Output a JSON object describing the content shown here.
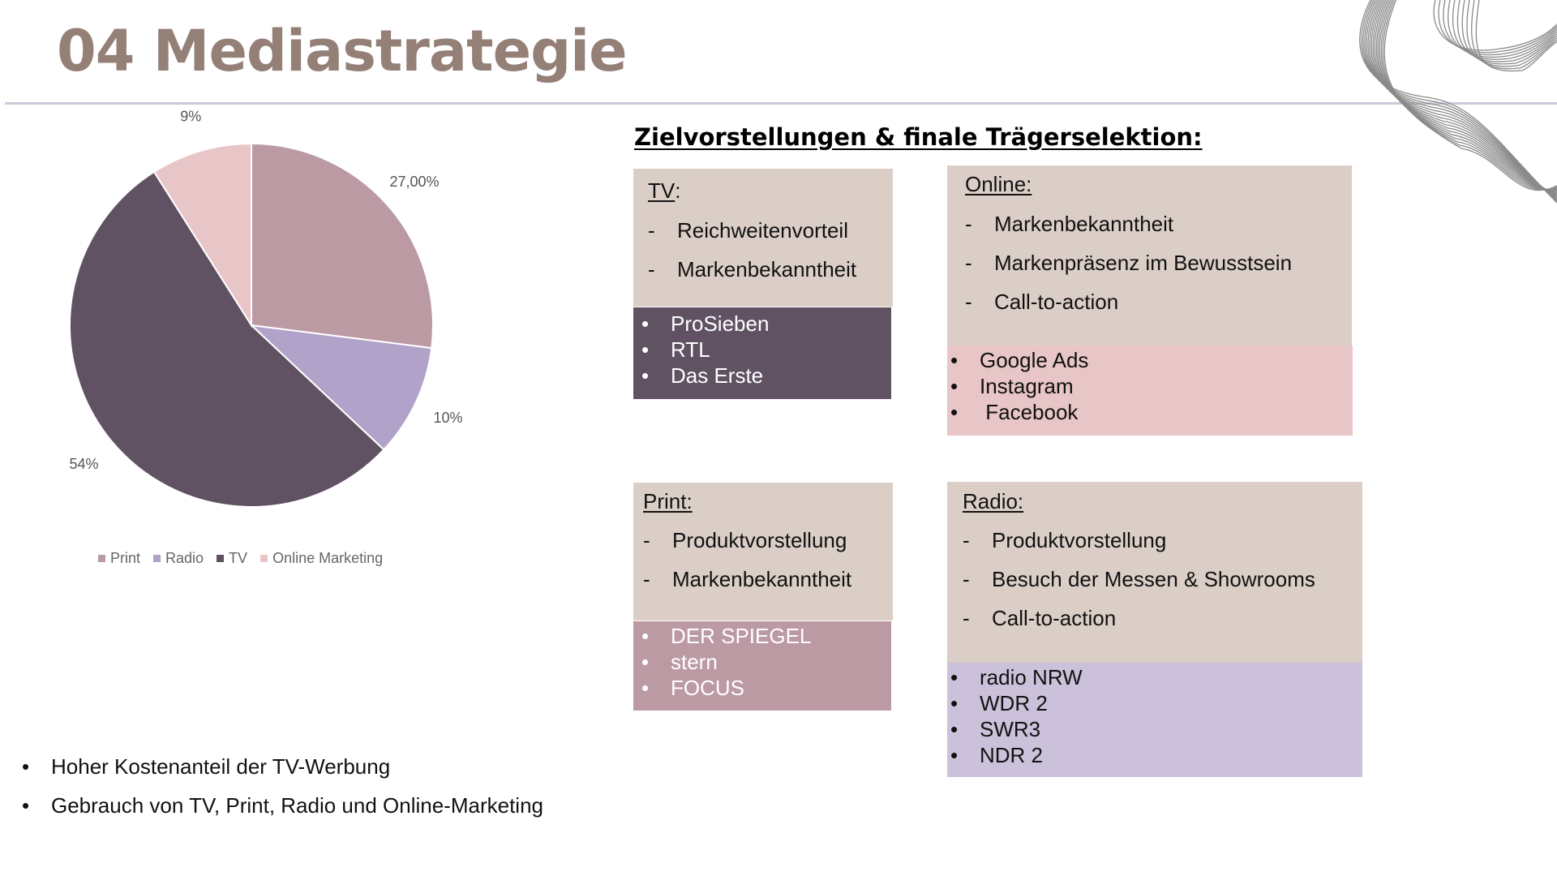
{
  "page": {
    "title": "04 Mediastrategie"
  },
  "section_title": "Zielvorstellungen & finale Trägerselektion:",
  "chart_data": {
    "type": "pie",
    "categories": [
      "Print",
      "Radio",
      "TV",
      "Online Marketing"
    ],
    "values": [
      27,
      10,
      54,
      9
    ],
    "labels": [
      "27,00%",
      "10%",
      "54%",
      "9%"
    ],
    "colors": [
      "#bb9aa3",
      "#b1a2c9",
      "#605263",
      "#e8c5c6"
    ],
    "legend_position": "bottom"
  },
  "boxes": {
    "tv": {
      "heading": "TV",
      "colon": ":",
      "goals": [
        "Reichweitenvorteil",
        "Markenbekanntheit"
      ],
      "carriers": [
        "ProSieben",
        "RTL",
        "Das Erste"
      ]
    },
    "online": {
      "heading": "Online:",
      "goals": [
        "Markenbekanntheit",
        "Markenpräsenz im Bewusstsein",
        "Call-to-action"
      ],
      "carriers": [
        "Google Ads",
        "Instagram",
        " Facebook"
      ]
    },
    "print": {
      "heading": "Print:",
      "goals": [
        "Produktvorstellung",
        "Markenbekanntheit"
      ],
      "carriers": [
        "DER SPIEGEL",
        "stern",
        "FOCUS"
      ]
    },
    "radio": {
      "heading": "Radio:",
      "goals": [
        "Produktvorstellung",
        "Besuch der Messen & Showrooms",
        "Call-to-action"
      ],
      "carriers": [
        "radio NRW",
        "WDR 2",
        "SWR3",
        "NDR 2"
      ]
    }
  },
  "notes": [
    "Hoher Kostenanteil der TV-Werbung",
    "Gebrauch von TV, Print, Radio und Online-Marketing"
  ],
  "colors": {
    "title": "#948077",
    "box_beige": "#dbcec7",
    "tv_strip": "#605263",
    "online_strip": "#e8c5c6",
    "print_strip": "#bb9aa3",
    "radio_strip": "#cbc1da"
  }
}
